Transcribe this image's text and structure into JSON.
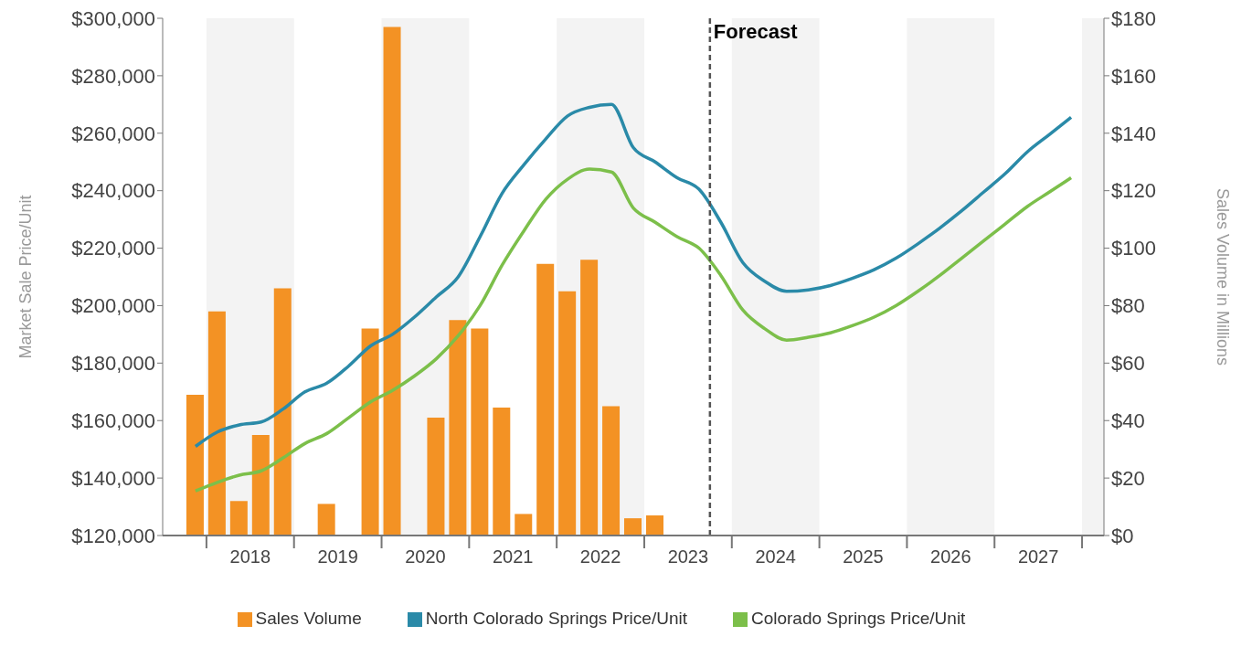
{
  "chart_data": {
    "type": "line",
    "ylabel": "Market Sale Price/Unit",
    "y2label": "Sales Volume in Millions",
    "x": [
      2017.875,
      2018.125,
      2018.375,
      2018.625,
      2018.875,
      2019.125,
      2019.375,
      2019.625,
      2019.875,
      2020.125,
      2020.375,
      2020.625,
      2020.875,
      2021.125,
      2021.375,
      2021.625,
      2021.875,
      2022.125,
      2022.375,
      2022.625,
      2022.875,
      2023.125,
      2023.375,
      2023.625,
      2023.875,
      2024.125,
      2024.375,
      2024.625,
      2024.875,
      2025.125,
      2025.375,
      2025.625,
      2025.875,
      2026.125,
      2026.375,
      2026.625,
      2026.875,
      2027.125,
      2027.375,
      2027.625,
      2027.875
    ],
    "series": [
      {
        "name": "Sales Volume",
        "type": "bar",
        "axis": "y2",
        "color": "#f39224",
        "values": [
          49,
          78,
          12,
          35,
          86,
          null,
          11,
          null,
          72,
          177,
          null,
          41,
          75,
          72,
          44.5,
          7.5,
          94.5,
          85,
          96,
          45,
          6,
          7,
          null,
          null,
          null,
          null,
          null,
          null,
          null,
          null,
          null,
          null,
          null,
          null,
          null,
          null,
          null,
          null,
          null,
          null,
          null
        ]
      },
      {
        "name": "North Colorado Springs Price/Unit",
        "color": "#2a8aa8",
        "values": [
          151000,
          156000,
          158500,
          159500,
          164000,
          170000,
          173000,
          179000,
          186000,
          190000,
          196000,
          203000,
          210000,
          224000,
          239000,
          249000,
          258000,
          266000,
          269000,
          270000,
          255000,
          250000,
          244500,
          240500,
          229000,
          215000,
          208500,
          205000,
          205500,
          207000,
          209500,
          212500,
          216500,
          221500,
          227000,
          233000,
          239500,
          246000,
          253500,
          259500,
          265500
        ]
      },
      {
        "name": "Colorado Springs Price/Unit",
        "color": "#7cbf4a",
        "values": [
          135500,
          138500,
          141000,
          142500,
          147000,
          152000,
          155500,
          161000,
          166500,
          170500,
          175500,
          181500,
          189500,
          200000,
          214000,
          226000,
          237000,
          244000,
          247500,
          246500,
          234000,
          229000,
          224000,
          220000,
          210500,
          198500,
          192000,
          188000,
          189000,
          190500,
          193000,
          196000,
          200000,
          205000,
          210500,
          216500,
          222500,
          228500,
          234500,
          239500,
          244500
        ]
      }
    ],
    "xlim": [
      2017.5,
      2028.25
    ],
    "xticks": [
      {
        "value": 2018,
        "label": null
      },
      {
        "value": 2018.5,
        "label": "2018"
      },
      {
        "value": 2019,
        "label": null
      },
      {
        "value": 2019.5,
        "label": "2019"
      },
      {
        "value": 2020,
        "label": null
      },
      {
        "value": 2020.5,
        "label": "2020"
      },
      {
        "value": 2021,
        "label": null
      },
      {
        "value": 2021.5,
        "label": "2021"
      },
      {
        "value": 2022,
        "label": null
      },
      {
        "value": 2022.5,
        "label": "2022"
      },
      {
        "value": 2023,
        "label": null
      },
      {
        "value": 2023.5,
        "label": "2023"
      },
      {
        "value": 2024,
        "label": null
      },
      {
        "value": 2024.5,
        "label": "2024"
      },
      {
        "value": 2025,
        "label": null
      },
      {
        "value": 2025.5,
        "label": "2025"
      },
      {
        "value": 2026,
        "label": null
      },
      {
        "value": 2026.5,
        "label": "2026"
      },
      {
        "value": 2027,
        "label": null
      },
      {
        "value": 2027.5,
        "label": "2027"
      },
      {
        "value": 2028,
        "label": null
      }
    ],
    "ylim": [
      120000,
      300000
    ],
    "yticks": [
      {
        "value": 120000,
        "label": "$120,000"
      },
      {
        "value": 140000,
        "label": "$140,000"
      },
      {
        "value": 160000,
        "label": "$160,000"
      },
      {
        "value": 180000,
        "label": "$180,000"
      },
      {
        "value": 200000,
        "label": "$200,000"
      },
      {
        "value": 220000,
        "label": "$220,000"
      },
      {
        "value": 240000,
        "label": "$240,000"
      },
      {
        "value": 260000,
        "label": "$260,000"
      },
      {
        "value": 280000,
        "label": "$280,000"
      },
      {
        "value": 300000,
        "label": "$300,000"
      }
    ],
    "y2lim": [
      0,
      180
    ],
    "y2ticks": [
      {
        "value": 0,
        "label": "$0"
      },
      {
        "value": 20,
        "label": "$20"
      },
      {
        "value": 40,
        "label": "$40"
      },
      {
        "value": 60,
        "label": "$60"
      },
      {
        "value": 80,
        "label": "$80"
      },
      {
        "value": 100,
        "label": "$100"
      },
      {
        "value": 120,
        "label": "$120"
      },
      {
        "value": 140,
        "label": "$140"
      },
      {
        "value": 160,
        "label": "$160"
      },
      {
        "value": 180,
        "label": "$180"
      }
    ],
    "bands": [
      {
        "axis": "x",
        "from": 2018,
        "to": 2019,
        "color": "#f3f3f3"
      },
      {
        "axis": "x",
        "from": 2020,
        "to": 2021,
        "color": "#f3f3f3"
      },
      {
        "axis": "x",
        "from": 2022,
        "to": 2023,
        "color": "#f3f3f3"
      },
      {
        "axis": "x",
        "from": 2024,
        "to": 2025,
        "color": "#f3f3f3"
      },
      {
        "axis": "x",
        "from": 2026,
        "to": 2027,
        "color": "#f3f3f3"
      },
      {
        "axis": "x",
        "from": 2028,
        "to": 2028.25,
        "color": "#f3f3f3"
      }
    ],
    "ref_lines": [
      {
        "axis": "x",
        "value": 2023.75,
        "label": "Forecast",
        "color": "#555555",
        "line_style": "dashed"
      }
    ],
    "grid": false,
    "legend": "bottom",
    "marker": "none",
    "line_style": "solid"
  }
}
